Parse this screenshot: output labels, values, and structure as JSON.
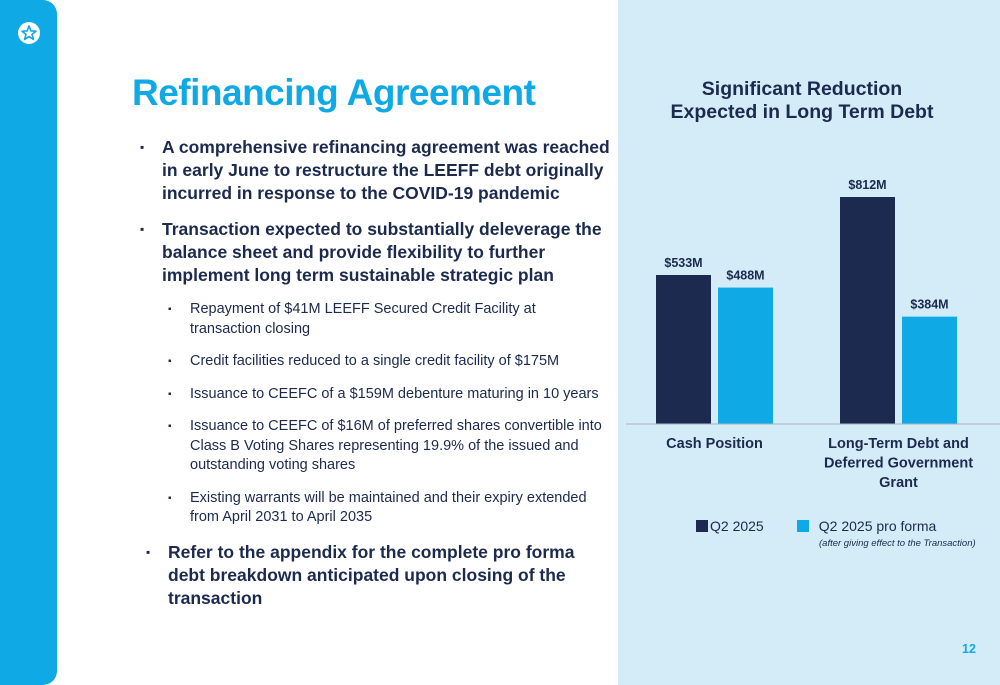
{
  "slide": {
    "title": "Refinancing Agreement",
    "page_number": "12",
    "brand_color": "#0fa9e6",
    "navy": "#1b2a4e",
    "logo_icon": "star-circle-icon"
  },
  "bullets": {
    "b1": "A comprehensive refinancing agreement was reached in early June to restructure the LEEFF debt originally incurred in response to the COVID-19 pandemic",
    "b2": "Transaction expected to substantially deleverage the balance sheet and provide flexibility to further implement long term sustainable strategic plan",
    "sub": [
      "Repayment of $41M LEEFF Secured Credit Facility at transaction closing",
      "Credit facilities reduced to a single credit facility of $175M",
      "Issuance to CEEFC of a $159M debenture maturing in 10 years",
      "Issuance to CEEFC of $16M of preferred shares convertible into Class B Voting Shares representing 19.9% of the issued and outstanding voting shares",
      "Existing warrants will be maintained and their expiry extended from April 2031 to April 2035"
    ],
    "b3": "Refer to the appendix for the complete pro forma debt breakdown anticipated upon closing of the transaction"
  },
  "chart_data": {
    "type": "bar",
    "title": "Significant Reduction\nExpected in Long Term Debt",
    "categories": [
      "Cash Position",
      "Long-Term Debt and\nDeferred Government\nGrant"
    ],
    "series": [
      {
        "name": "Q2 2025",
        "values": [
          533,
          812
        ],
        "labels": [
          "$533M",
          "$812M"
        ],
        "color": "#1b2a4e"
      },
      {
        "name": "Q2 2025 pro forma",
        "values": [
          488,
          384
        ],
        "labels": [
          "$488M",
          "$384M"
        ],
        "color": "#0fa9e6"
      }
    ],
    "legend_note": "(after giving effect to the Transaction)",
    "ylim": [
      0,
      900
    ],
    "grid": false,
    "legend_position": "bottom"
  }
}
